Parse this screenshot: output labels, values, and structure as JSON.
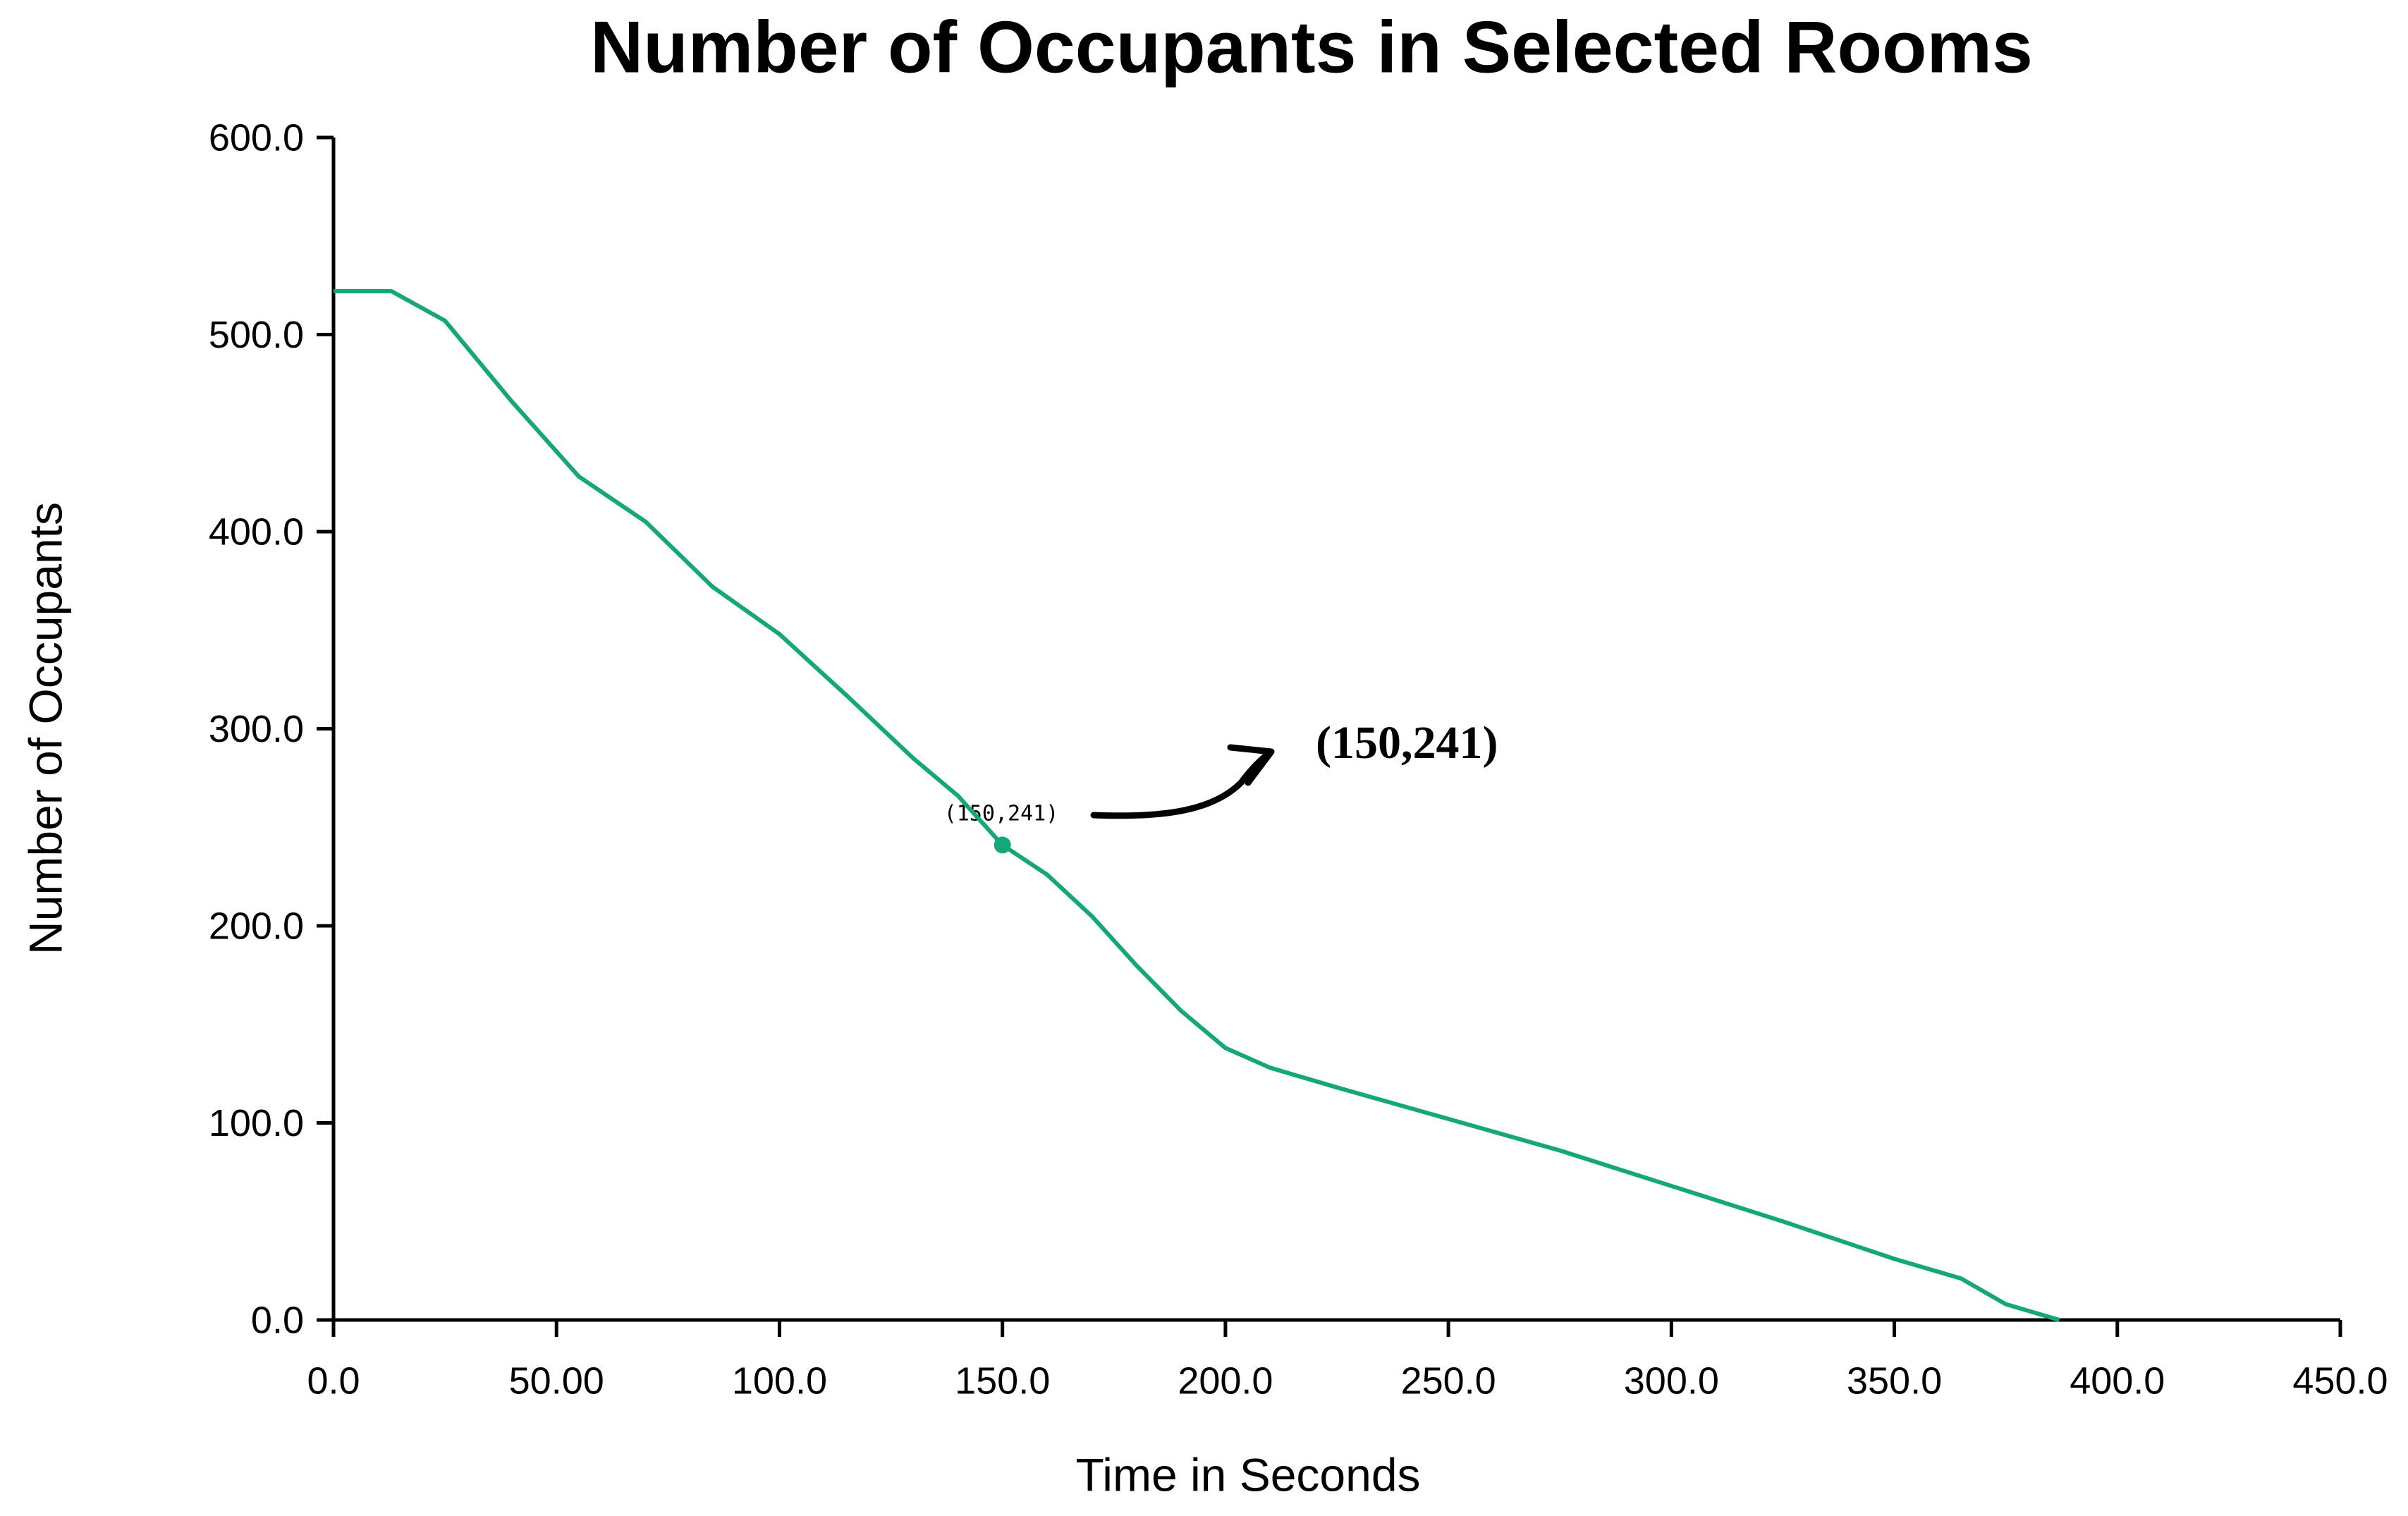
{
  "chart_data": {
    "type": "line",
    "title": "Number of Occupants in Selected Rooms",
    "x_label": "Time in Seconds",
    "y_label": "Number of Occupants",
    "xlim": [
      0,
      450
    ],
    "ylim": [
      0,
      600
    ],
    "xticks": [
      {
        "value": 0,
        "label": "0.0"
      },
      {
        "value": 50,
        "label": "50.00"
      },
      {
        "value": 100,
        "label": "100.0"
      },
      {
        "value": 150,
        "label": "150.0"
      },
      {
        "value": 200,
        "label": "200.0"
      },
      {
        "value": 250,
        "label": "250.0"
      },
      {
        "value": 300,
        "label": "300.0"
      },
      {
        "value": 350,
        "label": "350.0"
      },
      {
        "value": 400,
        "label": "400.0"
      },
      {
        "value": 450,
        "label": "450.0"
      }
    ],
    "yticks": [
      {
        "value": 0,
        "label": "0.0"
      },
      {
        "value": 100,
        "label": "100.0"
      },
      {
        "value": 200,
        "label": "200.0"
      },
      {
        "value": 300,
        "label": "300.0"
      },
      {
        "value": 400,
        "label": "400.0"
      },
      {
        "value": 500,
        "label": "500.0"
      },
      {
        "value": 600,
        "label": "600.0"
      }
    ],
    "grid": false,
    "x": [
      0,
      13,
      25,
      40,
      55,
      70,
      85,
      100,
      115,
      130,
      140,
      150,
      160,
      170,
      180,
      190,
      200,
      210,
      225,
      250,
      275,
      300,
      325,
      350,
      365,
      375,
      387
    ],
    "series": [
      {
        "color": "#16a779",
        "values": [
          522,
          522,
          507,
          466,
          428,
          405,
          372,
          348,
          317,
          285,
          266,
          241,
          226,
          205,
          180,
          157,
          138,
          128,
          118,
          102,
          86,
          68,
          50,
          31,
          21,
          8,
          0
        ]
      }
    ],
    "marker": {
      "x": 150,
      "y": 241
    },
    "annotations": [
      "(150,241)",
      "(150,241)"
    ]
  }
}
